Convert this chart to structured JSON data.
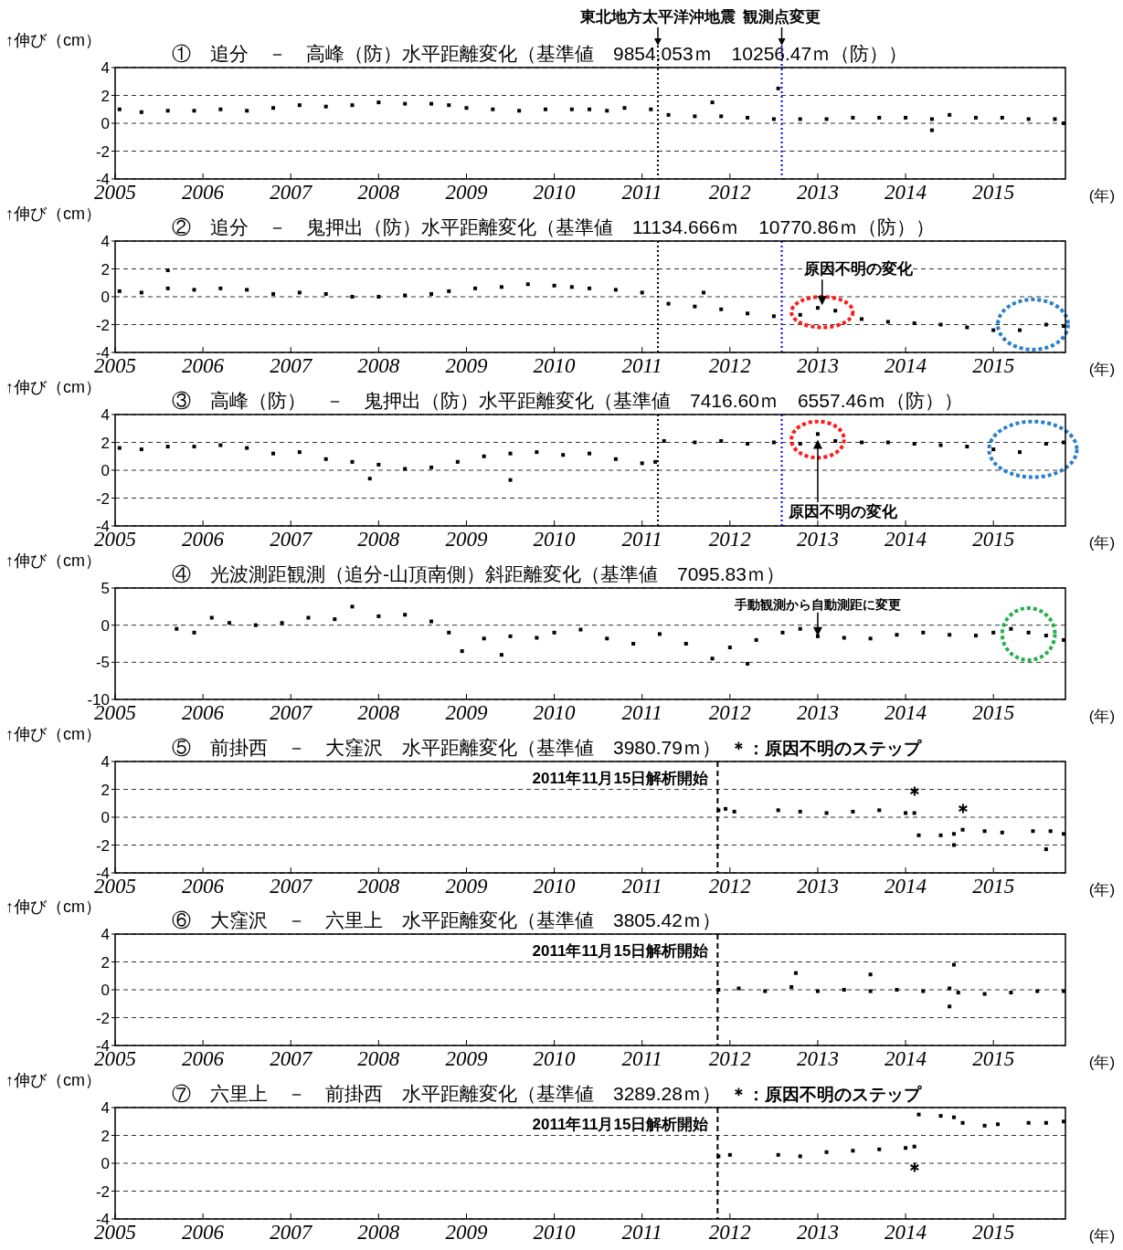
{
  "chart_data": [
    {
      "type": "scatter",
      "title": "①　追分　－　高峰（防）水平距離変化（基準値　9854.053ｍ　10256.47ｍ（防））",
      "xlabel": "(年)",
      "ylabel": "↑伸び（cm）",
      "marker": "square",
      "grid": "y",
      "xlim": [
        2005,
        2015.82
      ],
      "xticks": [
        2005,
        2006,
        2007,
        2008,
        2009,
        2010,
        2011,
        2012,
        2013,
        2014,
        2015
      ],
      "ylim": [
        -4,
        4
      ],
      "yticks": [
        -4,
        -2,
        0,
        2,
        4
      ],
      "series": [
        {
          "color": "#000000",
          "x": [
            2005.05,
            2005.3,
            2005.6,
            2005.9,
            2006.2,
            2006.5,
            2006.8,
            2007.1,
            2007.4,
            2007.7,
            2008.0,
            2008.3,
            2008.6,
            2008.8,
            2009.0,
            2009.3,
            2009.6,
            2009.9,
            2010.2,
            2010.4,
            2010.6,
            2010.8,
            2011.1,
            2011.3,
            2011.6,
            2011.8,
            2011.9,
            2012.2,
            2012.5,
            2012.55,
            2012.8,
            2013.1,
            2013.4,
            2013.7,
            2014.0,
            2014.3,
            2014.3,
            2014.5,
            2014.8,
            2015.1,
            2015.4,
            2015.7,
            2015.8
          ],
          "values": [
            1.0,
            0.8,
            0.9,
            0.9,
            1.0,
            0.9,
            1.1,
            1.3,
            1.2,
            1.3,
            1.5,
            1.4,
            1.4,
            1.3,
            1.1,
            1.0,
            0.9,
            1.0,
            1.0,
            1.0,
            0.9,
            1.1,
            1.0,
            0.6,
            0.5,
            1.5,
            0.5,
            0.4,
            0.3,
            2.5,
            0.3,
            0.3,
            0.4,
            0.4,
            0.4,
            0.3,
            -0.5,
            0.6,
            0.4,
            0.4,
            0.3,
            0.3,
            0.0
          ]
        }
      ],
      "ref_lines": [
        {
          "axis": "x",
          "value": 2011.18,
          "label": "東北地方太平洋沖地震",
          "color": "#000000",
          "line_style": "dotted"
        },
        {
          "axis": "x",
          "value": 2012.59,
          "label": "観測点変更",
          "color": "#0000ff",
          "line_style": "dotted"
        }
      ]
    },
    {
      "type": "scatter",
      "title": "②　追分　－　鬼押出（防）水平距離変化（基準値　11134.666ｍ　10770.86ｍ（防））",
      "xlabel": "(年)",
      "ylabel": "↑伸び（cm）",
      "marker": "square",
      "grid": "y",
      "xlim": [
        2005,
        2015.82
      ],
      "xticks": [
        2005,
        2006,
        2007,
        2008,
        2009,
        2010,
        2011,
        2012,
        2013,
        2014,
        2015
      ],
      "ylim": [
        -4,
        4
      ],
      "yticks": [
        -4,
        -2,
        0,
        2,
        4
      ],
      "series": [
        {
          "color": "#000000",
          "x": [
            2005.05,
            2005.3,
            2005.6,
            2005.6,
            2005.9,
            2006.2,
            2006.5,
            2006.8,
            2007.1,
            2007.4,
            2007.7,
            2008.0,
            2008.3,
            2008.6,
            2008.8,
            2009.1,
            2009.4,
            2009.7,
            2010.0,
            2010.2,
            2010.4,
            2010.7,
            2011.0,
            2011.3,
            2011.6,
            2011.7,
            2011.9,
            2012.2,
            2012.5,
            2012.8,
            2013.0,
            2013.2,
            2013.5,
            2013.8,
            2014.1,
            2014.4,
            2014.7,
            2015.0,
            2015.3,
            2015.6,
            2015.8
          ],
          "values": [
            0.4,
            0.3,
            0.6,
            1.9,
            0.5,
            0.6,
            0.5,
            0.2,
            0.3,
            0.2,
            0.0,
            0.0,
            0.1,
            0.2,
            0.4,
            0.6,
            0.7,
            0.9,
            0.8,
            0.7,
            0.6,
            0.5,
            0.3,
            -0.5,
            -0.7,
            0.3,
            -0.9,
            -1.2,
            -1.4,
            -1.3,
            -0.8,
            -1.0,
            -1.6,
            -1.8,
            -1.9,
            -2.0,
            -2.2,
            -2.4,
            -2.4,
            -2.0,
            -2.1
          ]
        }
      ],
      "ref_lines": [
        {
          "axis": "x",
          "value": 2011.18,
          "color": "#000000",
          "line_style": "dotted"
        },
        {
          "axis": "x",
          "value": 2012.59,
          "color": "#0000ff",
          "line_style": "dotted"
        }
      ],
      "annotations": [
        {
          "text": "原因不明の変化",
          "x": 2013.05,
          "y": -0.6
        }
      ]
    },
    {
      "type": "scatter",
      "title": "③　高峰（防）　－　鬼押出（防）水平距離変化（基準値　7416.60ｍ　6557.46ｍ（防））",
      "xlabel": "(年)",
      "ylabel": "↑伸び（cm）",
      "marker": "square",
      "grid": "y",
      "xlim": [
        2005,
        2015.82
      ],
      "xticks": [
        2005,
        2006,
        2007,
        2008,
        2009,
        2010,
        2011,
        2012,
        2013,
        2014,
        2015
      ],
      "ylim": [
        -4,
        4
      ],
      "yticks": [
        -4,
        -2,
        0,
        2,
        4
      ],
      "series": [
        {
          "color": "#000000",
          "x": [
            2005.05,
            2005.3,
            2005.6,
            2005.9,
            2006.2,
            2006.5,
            2006.8,
            2007.1,
            2007.4,
            2007.7,
            2007.9,
            2008.0,
            2008.3,
            2008.6,
            2008.9,
            2009.2,
            2009.5,
            2009.5,
            2009.8,
            2010.1,
            2010.4,
            2010.7,
            2011.0,
            2011.15,
            2011.25,
            2011.6,
            2011.9,
            2012.2,
            2012.5,
            2012.8,
            2013.0,
            2013.2,
            2013.5,
            2013.8,
            2014.1,
            2014.4,
            2014.7,
            2015.0,
            2015.3,
            2015.6,
            2015.8
          ],
          "values": [
            1.6,
            1.5,
            1.7,
            1.7,
            1.8,
            1.6,
            1.2,
            1.3,
            0.8,
            0.6,
            -0.6,
            0.4,
            0.1,
            0.2,
            0.6,
            1.0,
            1.2,
            -0.7,
            1.3,
            1.1,
            1.2,
            0.8,
            0.5,
            0.6,
            2.1,
            2.0,
            2.1,
            1.9,
            2.0,
            1.9,
            2.6,
            2.1,
            2.0,
            2.0,
            1.9,
            1.8,
            1.7,
            1.5,
            1.3,
            1.9,
            2.0
          ]
        }
      ],
      "ref_lines": [
        {
          "axis": "x",
          "value": 2011.18,
          "color": "#000000",
          "line_style": "dotted"
        },
        {
          "axis": "x",
          "value": 2012.59,
          "color": "#0000ff",
          "line_style": "dotted"
        }
      ],
      "annotations": [
        {
          "text": "原因不明の変化",
          "x": 2013.0,
          "y": 2.2
        }
      ]
    },
    {
      "type": "scatter",
      "title": "④　光波測距観測（追分-山頂南側）斜距離変化（基準値　7095.83ｍ）",
      "xlabel": "(年)",
      "ylabel": "↑伸び（cm）",
      "marker": "square",
      "grid": "y",
      "xlim": [
        2005,
        2015.82
      ],
      "xticks": [
        2005,
        2006,
        2007,
        2008,
        2009,
        2010,
        2011,
        2012,
        2013,
        2014,
        2015
      ],
      "ylim": [
        -10,
        5
      ],
      "yticks": [
        -10,
        -5,
        0,
        5
      ],
      "series": [
        {
          "color": "#000000",
          "x": [
            2005.7,
            2005.9,
            2006.1,
            2006.3,
            2006.6,
            2006.9,
            2007.2,
            2007.5,
            2007.7,
            2008.0,
            2008.3,
            2008.6,
            2008.8,
            2008.95,
            2009.2,
            2009.4,
            2009.5,
            2009.8,
            2010.0,
            2010.3,
            2010.6,
            2010.9,
            2011.2,
            2011.5,
            2011.8,
            2012.0,
            2012.2,
            2012.3,
            2012.6,
            2012.8,
            2013.0,
            2013.3,
            2013.6,
            2013.9,
            2014.2,
            2014.5,
            2014.8,
            2015.0,
            2015.2,
            2015.4,
            2015.6,
            2015.8
          ],
          "values": [
            -0.5,
            -1.0,
            1.0,
            0.3,
            0.0,
            0.3,
            1.0,
            0.8,
            2.5,
            1.2,
            1.4,
            0.5,
            -1.0,
            -3.5,
            -1.8,
            -4.0,
            -1.5,
            -1.7,
            -1.0,
            -0.6,
            -1.8,
            -2.5,
            -1.2,
            -2.5,
            -4.5,
            -3.0,
            -5.2,
            -2.0,
            -1.0,
            -0.5,
            -1.5,
            -1.7,
            -1.8,
            -1.3,
            -1.0,
            -1.3,
            -1.4,
            -1.0,
            -0.5,
            -1.0,
            -1.4,
            -2.0
          ]
        }
      ],
      "annotations": [
        {
          "text": "手動観測から自動測距に変更",
          "x": 2013.0,
          "y": -1.5
        }
      ]
    },
    {
      "type": "scatter",
      "title": "⑤　前掛西　－　大窪沢　水平距離変化（基準値　3980.79ｍ）",
      "subtitle": "＊：原因不明のステップ",
      "xlabel": "(年)",
      "ylabel": "↑伸び（cm）",
      "marker": "square",
      "grid": "y",
      "xlim": [
        2005,
        2015.82
      ],
      "xticks": [
        2005,
        2006,
        2007,
        2008,
        2009,
        2010,
        2011,
        2012,
        2013,
        2014,
        2015
      ],
      "ylim": [
        -4,
        4
      ],
      "yticks": [
        -4,
        -2,
        0,
        2,
        4
      ],
      "series": [
        {
          "color": "#000000",
          "x": [
            2011.87,
            2011.95,
            2012.05,
            2012.55,
            2012.8,
            2013.1,
            2013.4,
            2013.7,
            2014.0,
            2014.1,
            2014.15,
            2014.4,
            2014.55,
            2014.55,
            2014.65,
            2014.9,
            2015.1,
            2015.45,
            2015.6,
            2015.65,
            2015.8
          ],
          "values": [
            0.5,
            0.6,
            0.4,
            0.5,
            0.4,
            0.3,
            0.4,
            0.5,
            0.3,
            0.3,
            -1.3,
            -1.3,
            -1.2,
            -2.0,
            -0.9,
            -1.0,
            -1.1,
            -1.0,
            -2.3,
            -1.0,
            -1.2
          ]
        }
      ],
      "ref_lines": [
        {
          "axis": "x",
          "value": 2011.86,
          "label": "2011年11月15日解析開始",
          "color": "#000000",
          "line_style": "dashed"
        }
      ],
      "annotations": [
        {
          "text": "＊",
          "x": 2014.1,
          "y": 0.3
        },
        {
          "text": "＊",
          "x": 2014.65,
          "y": -0.9
        }
      ]
    },
    {
      "type": "scatter",
      "title": "⑥　大窪沢　－　六里上　水平距離変化（基準値　3805.42ｍ）",
      "xlabel": "(年)",
      "ylabel": "↑伸び（cm）",
      "marker": "square",
      "grid": "y",
      "xlim": [
        2005,
        2015.82
      ],
      "xticks": [
        2005,
        2006,
        2007,
        2008,
        2009,
        2010,
        2011,
        2012,
        2013,
        2014,
        2015
      ],
      "ylim": [
        -4,
        4
      ],
      "yticks": [
        -4,
        -2,
        0,
        2,
        4
      ],
      "series": [
        {
          "color": "#000000",
          "x": [
            2011.87,
            2012.1,
            2012.4,
            2012.7,
            2012.75,
            2013.0,
            2013.3,
            2013.6,
            2013.6,
            2013.9,
            2014.2,
            2014.5,
            2014.5,
            2014.55,
            2014.6,
            2014.9,
            2015.2,
            2015.5,
            2015.8
          ],
          "values": [
            0.0,
            0.1,
            -0.1,
            0.2,
            1.2,
            -0.1,
            0.0,
            -0.1,
            1.1,
            0.0,
            -0.1,
            0.1,
            -1.2,
            1.8,
            -0.2,
            -0.3,
            -0.2,
            -0.1,
            -0.1
          ]
        }
      ],
      "ref_lines": [
        {
          "axis": "x",
          "value": 2011.86,
          "label": "2011年11月15日解析開始",
          "color": "#000000",
          "line_style": "dashed"
        }
      ]
    },
    {
      "type": "scatter",
      "title": "⑦　六里上　－　前掛西　水平距離変化（基準値　3289.28ｍ）",
      "subtitle": "＊：原因不明のステップ",
      "xlabel": "(年)",
      "ylabel": "↑伸び（cm）",
      "marker": "square",
      "grid": "y",
      "xlim": [
        2005,
        2015.82
      ],
      "xticks": [
        2005,
        2006,
        2007,
        2008,
        2009,
        2010,
        2011,
        2012,
        2013,
        2014,
        2015
      ],
      "ylim": [
        -4,
        4
      ],
      "yticks": [
        -4,
        -2,
        0,
        2,
        4
      ],
      "series": [
        {
          "color": "#000000",
          "x": [
            2011.87,
            2012.0,
            2012.55,
            2012.8,
            2013.1,
            2013.4,
            2013.7,
            2014.0,
            2014.1,
            2014.15,
            2014.4,
            2014.55,
            2014.65,
            2014.9,
            2015.05,
            2015.4,
            2015.6,
            2015.8
          ],
          "values": [
            0.5,
            0.6,
            0.6,
            0.5,
            0.8,
            0.9,
            1.0,
            1.1,
            1.2,
            3.5,
            3.4,
            3.3,
            2.9,
            2.7,
            2.8,
            2.9,
            2.9,
            3.0
          ]
        }
      ],
      "ref_lines": [
        {
          "axis": "x",
          "value": 2011.86,
          "label": "2011年11月15日解析開始",
          "color": "#000000",
          "line_style": "dashed"
        }
      ],
      "annotations": [
        {
          "text": "＊",
          "x": 2014.1,
          "y": 1.2
        }
      ]
    }
  ]
}
